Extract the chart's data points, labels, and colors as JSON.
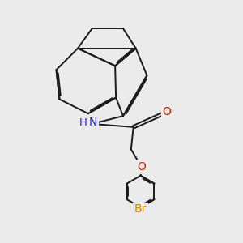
{
  "bg_color": "#ebebeb",
  "bond_color": "#1a1a1a",
  "bond_width": 1.4,
  "atom_colors": {
    "N": "#2222cc",
    "O": "#cc2200",
    "Br": "#cc8800"
  },
  "dbo": 0.06
}
